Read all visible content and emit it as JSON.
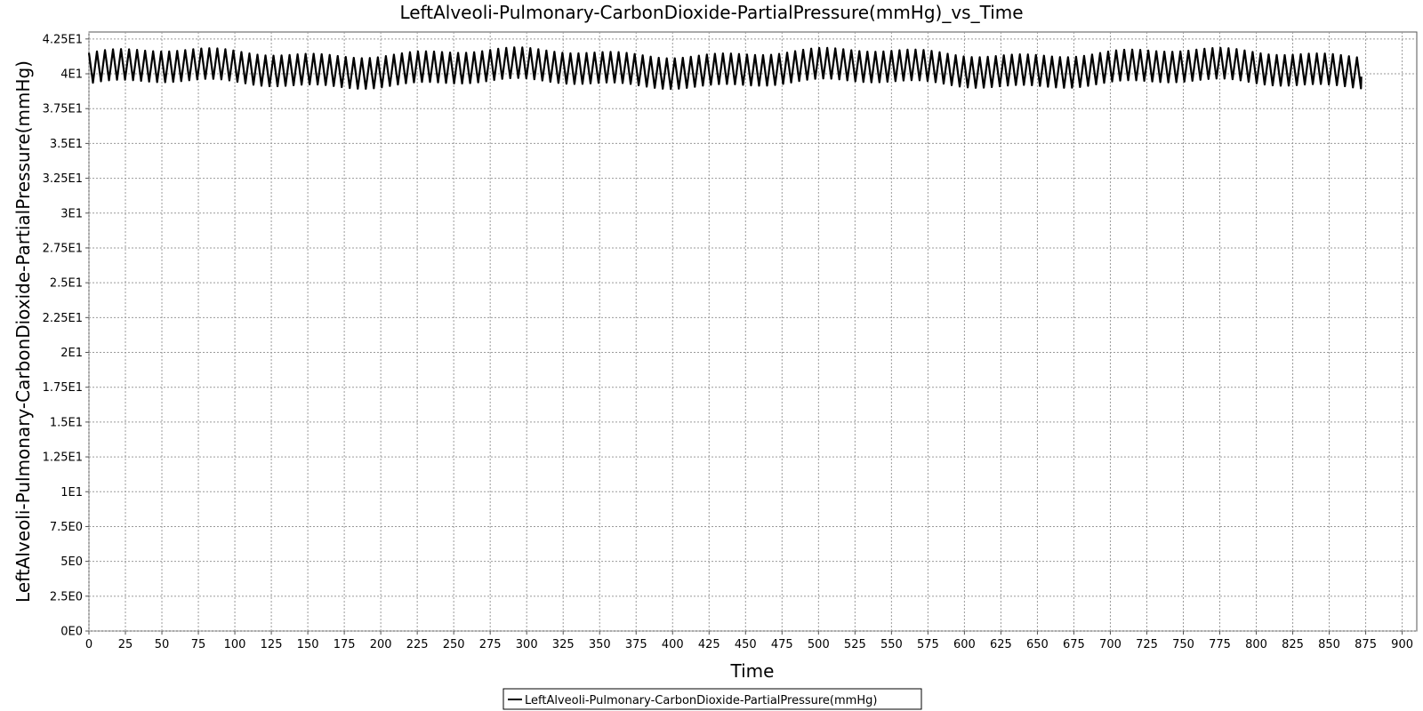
{
  "chart_data": {
    "type": "line",
    "title": "LeftAlveoli-Pulmonary-CarbonDioxide-PartialPressure(mmHg)_vs_Time",
    "xlabel": "Time",
    "ylabel": "LeftAlveoli-Pulmonary-CarbonDioxide-PartialPressure(mmHg)",
    "xlim": [
      0,
      910
    ],
    "ylim": [
      0,
      43
    ],
    "x_ticks": [
      "0",
      "25",
      "50",
      "75",
      "100",
      "125",
      "150",
      "175",
      "200",
      "225",
      "250",
      "275",
      "300",
      "325",
      "350",
      "375",
      "400",
      "425",
      "450",
      "475",
      "500",
      "525",
      "550",
      "575",
      "600",
      "625",
      "650",
      "675",
      "700",
      "725",
      "750",
      "775",
      "800",
      "825",
      "850",
      "875",
      "900"
    ],
    "y_ticks": [
      "0E0",
      "2.5E0",
      "5E0",
      "7.5E0",
      "1E1",
      "1.25E1",
      "1.5E1",
      "1.75E1",
      "2E1",
      "2.25E1",
      "2.5E1",
      "2.75E1",
      "3E1",
      "3.25E1",
      "3.5E1",
      "3.75E1",
      "4E1",
      "4.25E1"
    ],
    "grid": true,
    "legend_position": "bottom",
    "series": [
      {
        "name": "LeftAlveoli-Pulmonary-CarbonDioxide-PartialPressure(mmHg)",
        "color": "#000000",
        "x_start": 0,
        "x_end": 872,
        "period": 5.5,
        "max": 41.5,
        "min": 39.3,
        "mean": 40.4
      }
    ]
  }
}
